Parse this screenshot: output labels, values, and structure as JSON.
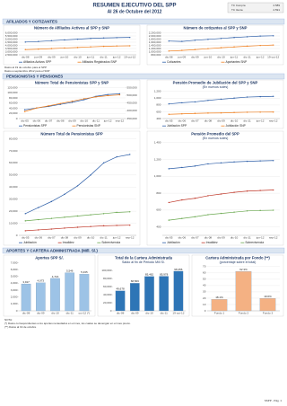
{
  "header": {
    "title": "RESUMEN EJECUTIVO DEL SPP",
    "subtitle": "Al 26 de Octubre del 2012",
    "tc": [
      {
        "label": "TC Compra",
        "value": "2.589"
      },
      {
        "label": "TC Venta",
        "value": "2.591"
      }
    ]
  },
  "sections": [
    "AFILIADOS Y COTIZANTES",
    "PENSIONISTAS Y PENSIONES",
    "APORTES Y CARTERA ADMINISTRADA (Mill. S/.)"
  ],
  "notes_afiliados": [
    "Datos al 19 de octubre para el SPP",
    "Datos a septiembre 2012 para el SNP"
  ],
  "notes": [
    "NOTA:",
    "(*) Datos correspondientes a los aportes recaudados en el mes, los cuales se devengan en el mes previo.",
    "(**) Datos al 19 de octubre"
  ],
  "footer": "SSPP - Pág. 1",
  "chart_data": [
    {
      "type": "line",
      "title": "Número de Afiliados Activos al SPP y SNP",
      "categories": [
        "dic-08",
        "jun-09",
        "dic-09",
        "jun-10",
        "dic-10",
        "jun-11",
        "dic-11",
        "jun-12",
        "19-oct-12"
      ],
      "series": [
        {
          "name": "Afiliados Activos SPP",
          "color": "#2e5fa8",
          "values": [
            4525000,
            4616000,
            4739000,
            4863000,
            4979000,
            5103000,
            5176000,
            5227000,
            5263000
          ]
        },
        {
          "name": "Afiliados Registrados SNP",
          "color": "#f07f1e",
          "values": [
            3325000,
            3396000,
            3482000,
            3578000,
            3660000,
            3756000,
            3840000,
            3900000,
            3925000
          ]
        }
      ],
      "ylim": [
        2500000,
        6000000
      ],
      "yticks": [
        {
          "value": 2500000,
          "label": "2,500,000"
        },
        {
          "value": 3000000,
          "label": "3,000,000"
        },
        {
          "value": 3500000,
          "label": "3,500,000"
        },
        {
          "value": 4000000,
          "label": "4,000,000"
        },
        {
          "value": 4500000,
          "label": "4,500,000"
        },
        {
          "value": 5000000,
          "label": "5,000,000"
        },
        {
          "value": 5500000,
          "label": "5,500,000"
        },
        {
          "value": 6000000,
          "label": "6,000,000"
        }
      ],
      "grid": true
    },
    {
      "type": "line",
      "title": "Número de cotizantes al SPP y SNP",
      "categories": [
        "dic-08",
        "jun-09",
        "dic-09",
        "jun-10",
        "dic-10",
        "jun-11",
        "dic-11",
        "jun-12",
        "19-oct-12"
      ],
      "series": [
        {
          "name": "Cotizantes",
          "color": "#2e5fa8",
          "values": [
            1675000,
            1652000,
            1724000,
            1782000,
            1840000,
            1900000,
            1946000,
            1992000,
            2010000
          ]
        },
        {
          "name": "Aportantes SNP",
          "color": "#f07f1e",
          "values": [
            1040000,
            1080000,
            1130000,
            1190000,
            1250000,
            1300000,
            1350000,
            1390000,
            1420000
          ]
        }
      ],
      "ylim": [
        800000,
        2200000
      ],
      "yticks": [
        {
          "value": 800000,
          "label": "800,000"
        },
        {
          "value": 1000000,
          "label": "1,000,000"
        },
        {
          "value": 1200000,
          "label": "1,200,000"
        },
        {
          "value": 1400000,
          "label": "1,400,000"
        },
        {
          "value": 1600000,
          "label": "1,600,000"
        },
        {
          "value": 1800000,
          "label": "1,800,000"
        },
        {
          "value": 2000000,
          "label": "2,000,000"
        },
        {
          "value": 2200000,
          "label": "2,200,000"
        }
      ],
      "grid": true
    },
    {
      "type": "line",
      "title": "Número Total de Pensionistas SPP y SNP",
      "categories": [
        "dic-05",
        "dic-06",
        "dic-07",
        "dic-08",
        "dic-09",
        "dic-10",
        "dic-11",
        "jun-12",
        "sep-12"
      ],
      "series": [
        {
          "name": "Pensionistas SPP",
          "color": "#2e5fa8",
          "values": [
            34000,
            41000,
            47000,
            55000,
            63000,
            73000,
            86000,
            93000,
            96000
          ]
        },
        {
          "name": "Pensionistas SNP",
          "color": "#f07f1e",
          "axis": "y2",
          "values": [
            395000,
            418000,
            432000,
            447000,
            462000,
            478000,
            490000,
            498000,
            503000
          ]
        }
      ],
      "ylim": [
        0,
        120000
      ],
      "yticks": [
        0,
        {
          "value": 20000,
          "label": "20,000"
        },
        {
          "value": 40000,
          "label": "40,000"
        },
        {
          "value": 60000,
          "label": "60,000"
        },
        {
          "value": 80000,
          "label": "80,000"
        },
        {
          "value": 100000,
          "label": "100,000"
        },
        {
          "value": 120000,
          "label": "120,000"
        }
      ],
      "y2lim": [
        350000,
        550000
      ],
      "y2ticks": [
        {
          "value": 350000,
          "label": "350,000"
        },
        {
          "value": 400000,
          "label": "400,000"
        },
        {
          "value": 450000,
          "label": "450,000"
        },
        {
          "value": 500000,
          "label": "500,000"
        },
        {
          "value": 550000,
          "label": "550,000"
        }
      ],
      "grid": true
    },
    {
      "type": "line",
      "title": "Pensión Promedio de Jubilación del SPP y SNP",
      "subtitle": "(En nuevos soles)",
      "categories": [
        "dic-05",
        "dic-06",
        "dic-07",
        "dic-08",
        "dic-09",
        "dic-10",
        "dic-11",
        "jun-12",
        "sep-12"
      ],
      "series": [
        {
          "name": "Jubilación SPP",
          "color": "#2e5fa8",
          "values": [
            832,
            866,
            891,
            936,
            971,
            1003,
            1034,
            1046,
            1055
          ]
        },
        {
          "name": "Jubilación SNP",
          "color": "#f07f1e",
          "values": [
            526,
            540,
            552,
            562,
            566,
            578,
            587,
            590,
            592
          ]
        }
      ],
      "ylim": [
        400,
        1200
      ],
      "yticks": [
        400,
        600,
        800,
        {
          "value": 1000,
          "label": "1,000"
        },
        {
          "value": 1200,
          "label": "1,200"
        }
      ],
      "grid": true
    },
    {
      "type": "line",
      "title": "Número Total de Pensionistas SPP",
      "categories": [
        "dic-05",
        "dic-06",
        "dic-07",
        "dic-08",
        "dic-09",
        "dic-10",
        "dic-11",
        "jun-12",
        "sep-12"
      ],
      "series": [
        {
          "name": "Jubilación",
          "color": "#2e5fa8",
          "values": [
            18000,
            23000,
            28000,
            34000,
            41000,
            50000,
            60000,
            65000,
            67000
          ]
        },
        {
          "name": "Invalidez",
          "color": "#c0392b",
          "values": [
            3800,
            4500,
            5200,
            6000,
            6700,
            7300,
            7900,
            8200,
            8400
          ]
        },
        {
          "name": "Sobrevivencia",
          "color": "#6aa84f",
          "values": [
            12000,
            13000,
            14000,
            15000,
            16000,
            17000,
            18000,
            19000,
            19500
          ]
        }
      ],
      "ylim": [
        0,
        80000
      ],
      "yticks": [
        0,
        {
          "value": 10000,
          "label": "10,000"
        },
        {
          "value": 20000,
          "label": "20,000"
        },
        {
          "value": 30000,
          "label": "30,000"
        },
        {
          "value": 40000,
          "label": "40,000"
        },
        {
          "value": 50000,
          "label": "50,000"
        },
        {
          "value": 60000,
          "label": "60,000"
        },
        {
          "value": 70000,
          "label": "70,000"
        },
        {
          "value": 80000,
          "label": "80,000"
        }
      ],
      "grid": true
    },
    {
      "type": "line",
      "title": "Pensión Promedio del SPP",
      "subtitle": "(En nuevos soles)",
      "categories": [
        "dic-05",
        "dic-06",
        "dic-07",
        "dic-08",
        "dic-09",
        "dic-10",
        "dic-11",
        "jun-12",
        "sep-12"
      ],
      "series": [
        {
          "name": "Jubilación",
          "color": "#2e5fa8",
          "values": [
            1090,
            1105,
            1122,
            1148,
            1160,
            1171,
            1178,
            1183,
            1187
          ]
        },
        {
          "name": "Invalidez",
          "color": "#c0392b",
          "values": [
            690,
            720,
            740,
            770,
            790,
            810,
            825,
            832,
            838
          ]
        },
        {
          "name": "Sobrevivencia",
          "color": "#6aa84f",
          "values": [
            480,
            500,
            520,
            545,
            560,
            575,
            590,
            595,
            598
          ]
        }
      ],
      "ylim": [
        300,
        1400
      ],
      "yticks": [
        400,
        600,
        800,
        {
          "value": 1000,
          "label": "1,000"
        },
        {
          "value": 1200,
          "label": "1,200"
        },
        {
          "value": 1400,
          "label": "1,400"
        }
      ],
      "grid": true
    },
    {
      "type": "bar",
      "title": "Aportes SPP S/.",
      "categories": [
        "dic-08",
        "dic-09",
        "dic-10",
        "dic-11",
        "oct-12 (*)"
      ],
      "values": [
        3917,
        4073,
        4716,
        5546,
        5335
      ],
      "value_labels": [
        "3,917",
        "4,073",
        "4,716",
        "5,546",
        "5,335"
      ],
      "color": "#9dc3e6",
      "ylim": [
        0,
        7000
      ],
      "yticks": [
        0,
        {
          "value": 1000,
          "label": "1,000"
        },
        {
          "value": 2000,
          "label": "2,000"
        },
        {
          "value": 3000,
          "label": "3,000"
        },
        {
          "value": 4000,
          "label": "4,000"
        },
        {
          "value": 5000,
          "label": "5,000"
        },
        {
          "value": 6000,
          "label": "6,000"
        },
        {
          "value": 7000,
          "label": "7,000"
        }
      ],
      "grid": false
    },
    {
      "type": "bar",
      "title": "Total de la Cartera Administrada",
      "subtitle": "Saldo al fin de Periodo Mill S/.",
      "categories": [
        "dic-08",
        "dic-09",
        "dic-10",
        "dic-11",
        "19-oct-12"
      ],
      "values": [
        49678,
        68566,
        85462,
        85978,
        98456
      ],
      "value_labels": [
        "49,678",
        "68,566",
        "85,462",
        "85,978",
        "98,456"
      ],
      "color": "#2e75b6",
      "ylim": [
        0,
        110000
      ],
      "yticks": [
        0,
        {
          "value": 20000,
          "label": "20,000"
        },
        {
          "value": 40000,
          "label": "40,000"
        },
        {
          "value": 60000,
          "label": "60,000"
        },
        {
          "value": 80000,
          "label": "80,000"
        },
        {
          "value": 100000,
          "label": "100,000"
        }
      ],
      "grid": false
    },
    {
      "type": "bar",
      "title": "Cartera Administrada por Fondo (**)",
      "subtitle": "(porcentaje sobre el total)",
      "categories": [
        "Fondo 1",
        "Fondo 2",
        "Fondo 3"
      ],
      "values": [
        18.1,
        62.3,
        19.6
      ],
      "value_labels": [
        "18.1%",
        "62.3%",
        "19.6%"
      ],
      "color": "#f4b183",
      "ylim": [
        0,
        70
      ],
      "yticks": [
        0,
        10,
        20,
        30,
        40,
        50,
        60,
        70
      ],
      "grid": true
    }
  ]
}
